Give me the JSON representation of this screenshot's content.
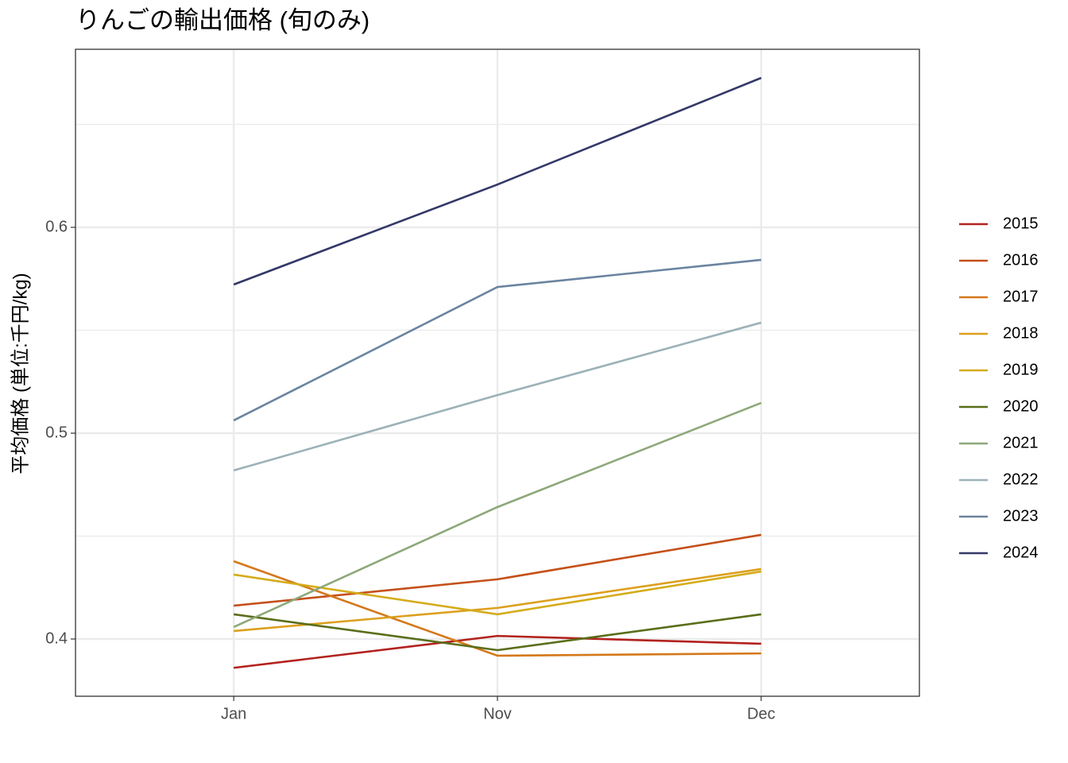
{
  "chart_data": {
    "type": "line",
    "title": "りんごの輸出価格 (旬のみ)",
    "y_label": "平均価格 (単位:千円/kg)",
    "categories": [
      "Jan",
      "Nov",
      "Dec"
    ],
    "series": [
      {
        "name": "2015",
        "color": "#b2221e",
        "values": [
          0.386,
          0.4015,
          0.3977
        ]
      },
      {
        "name": "2016",
        "color": "#c4501a",
        "values": [
          0.4162,
          0.429,
          0.4506
        ]
      },
      {
        "name": "2017",
        "color": "#d4781a",
        "values": [
          0.4378,
          0.3919,
          0.393
        ]
      },
      {
        "name": "2018",
        "color": "#dca01e",
        "values": [
          0.4039,
          0.4151,
          0.434
        ]
      },
      {
        "name": "2019",
        "color": "#d4ac1a",
        "values": [
          0.4313,
          0.412,
          0.4328
        ]
      },
      {
        "name": "2020",
        "color": "#5a6e1a",
        "values": [
          0.412,
          0.3946,
          0.412
        ]
      },
      {
        "name": "2021",
        "color": "#8da87a",
        "values": [
          0.4058,
          0.4641,
          0.5147
        ]
      },
      {
        "name": "2022",
        "color": "#9bb2b8",
        "values": [
          0.4819,
          0.5185,
          0.5537
        ]
      },
      {
        "name": "2023",
        "color": "#6a84a0",
        "values": [
          0.5062,
          0.571,
          0.5842
        ]
      },
      {
        "name": "2024",
        "color": "#343868",
        "values": [
          0.5722,
          0.6208,
          0.6726
        ]
      }
    ],
    "ylim": [
      0.3722,
      0.6865
    ],
    "yticks": [
      0.4,
      0.5,
      0.6
    ],
    "y_minor_grid": [
      0.45,
      0.55,
      0.65
    ],
    "grid": true,
    "legend": "right"
  }
}
